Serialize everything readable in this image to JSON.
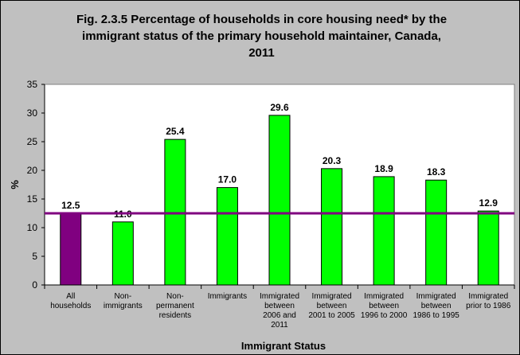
{
  "title_lines": [
    "Fig. 2.3.5 Percentage of households in core housing need* by the",
    "immigrant status of the primary household maintainer, Canada,",
    "2011"
  ],
  "chart_data": {
    "type": "bar",
    "title": "Fig. 2.3.5 Percentage of households in core housing need* by the immigrant status of the primary household maintainer, Canada, 2011",
    "xlabel": "Immigrant Status",
    "ylabel": "%",
    "ylim": [
      0,
      35
    ],
    "yticks": [
      0,
      5,
      10,
      15,
      20,
      25,
      30,
      35
    ],
    "categories": [
      [
        "All",
        "households"
      ],
      [
        "Non-",
        "immigrants"
      ],
      [
        "Non-",
        "permanent",
        "residents"
      ],
      [
        "Immigrants"
      ],
      [
        "Immigrated",
        "between",
        "2006 and",
        "2011"
      ],
      [
        "Immigrated",
        "between",
        "2001 to 2005"
      ],
      [
        "Immigrated",
        "between",
        "1996 to 2000"
      ],
      [
        "Immigrated",
        "between",
        "1986 to 1995"
      ],
      [
        "Immigrated",
        "prior to 1986"
      ]
    ],
    "values": [
      12.5,
      11.0,
      25.4,
      17.0,
      29.6,
      20.3,
      18.9,
      18.3,
      12.9
    ],
    "data_labels": [
      "12.5",
      "11.0",
      "25.4",
      "17.0",
      "29.6",
      "20.3",
      "18.9",
      "18.3",
      "12.9"
    ],
    "bar_colors": [
      "#800080",
      "#00ff00",
      "#00ff00",
      "#00ff00",
      "#00ff00",
      "#00ff00",
      "#00ff00",
      "#00ff00",
      "#00ff00"
    ],
    "reference_line": {
      "value": 12.5,
      "color": "#800080"
    },
    "grid": false,
    "legend": "none"
  }
}
